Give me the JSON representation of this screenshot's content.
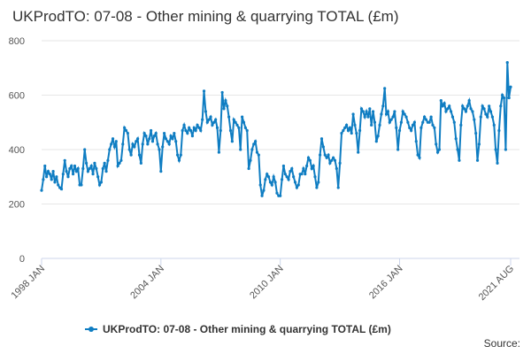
{
  "chart_data": {
    "type": "line",
    "title": "UKProdTO: 07-08 - Other mining & quarrying TOTAL (£m)",
    "source": "Source:",
    "categories": [
      "1998 JAN",
      null,
      null,
      null,
      null,
      null,
      null,
      null,
      null,
      null,
      null,
      null,
      null,
      null,
      null,
      null,
      null,
      null,
      null,
      null,
      null,
      null,
      null,
      null,
      null,
      null,
      null,
      null,
      null,
      null,
      null,
      null,
      null,
      null,
      null,
      null,
      null,
      null,
      null,
      null,
      null,
      null,
      null,
      null,
      null,
      null,
      null,
      null,
      null,
      null,
      null,
      null,
      null,
      null,
      null,
      null,
      null,
      null,
      null,
      null,
      null,
      null,
      null,
      null,
      null,
      null,
      null,
      null,
      null,
      null,
      null,
      null,
      "2004 JAN",
      null,
      null,
      null,
      null,
      null,
      null,
      null,
      null,
      null,
      null,
      null,
      null,
      null,
      null,
      null,
      null,
      null,
      null,
      null,
      null,
      null,
      null,
      null,
      null,
      null,
      null,
      null,
      null,
      null,
      null,
      null,
      null,
      null,
      null,
      null,
      null,
      null,
      null,
      null,
      null,
      null,
      null,
      null,
      null,
      null,
      null,
      null,
      null,
      null,
      null,
      null,
      null,
      null,
      null,
      null,
      null,
      null,
      null,
      null,
      null,
      null,
      null,
      null,
      null,
      null,
      null,
      null,
      null,
      null,
      null,
      null,
      "2010 JAN",
      null,
      null,
      null,
      null,
      null,
      null,
      null,
      null,
      null,
      null,
      null,
      null,
      null,
      null,
      null,
      null,
      null,
      null,
      null,
      null,
      null,
      null,
      null,
      null,
      null,
      null,
      null,
      null,
      null,
      null,
      null,
      null,
      null,
      null,
      null,
      null,
      null,
      null,
      null,
      null,
      null,
      null,
      null,
      null,
      null,
      null,
      null,
      null,
      null,
      null,
      null,
      null,
      null,
      null,
      null,
      null,
      null,
      null,
      null,
      null,
      null,
      null,
      null,
      null,
      null,
      null,
      null,
      null,
      null,
      null,
      null,
      "2016 JAN",
      null,
      null,
      null,
      null,
      null,
      null,
      null,
      null,
      null,
      null,
      null,
      null,
      null,
      null,
      null,
      null,
      null,
      null,
      null,
      null,
      null,
      null,
      null,
      null,
      null,
      null,
      null,
      null,
      null,
      null,
      null,
      null,
      null,
      null,
      null,
      null,
      null,
      null,
      null,
      null,
      null,
      null,
      null,
      null,
      null,
      null,
      null,
      null,
      null,
      null,
      null,
      null,
      null,
      null,
      null,
      null,
      null,
      null,
      null,
      null,
      null,
      null,
      null,
      null,
      null,
      null,
      "2021 AUG"
    ],
    "series": [
      {
        "name": "UKProdTO: 07-08 - Other mining & quarrying TOTAL (£m)",
        "color": "#0f7dc2",
        "values": [
          250,
          290,
          340,
          300,
          320,
          310,
          290,
          320,
          280,
          300,
          270,
          260,
          255,
          310,
          360,
          320,
          300,
          330,
          340,
          310,
          340,
          320,
          330,
          270,
          270,
          330,
          400,
          350,
          320,
          330,
          340,
          310,
          350,
          330,
          300,
          270,
          280,
          330,
          350,
          320,
          360,
          400,
          420,
          440,
          410,
          430,
          340,
          350,
          360,
          420,
          480,
          470,
          460,
          400,
          380,
          420,
          410,
          430,
          440,
          380,
          350,
          420,
          460,
          450,
          420,
          440,
          470,
          430,
          450,
          460,
          420,
          400,
          320,
          410,
          460,
          440,
          430,
          420,
          450,
          440,
          460,
          430,
          380,
          360,
          380,
          470,
          490,
          470,
          460,
          480,
          470,
          450,
          480,
          470,
          490,
          480,
          470,
          510,
          615,
          540,
          500,
          510,
          520,
          490,
          500,
          510,
          480,
          390,
          470,
          610,
          550,
          580,
          560,
          520,
          470,
          430,
          510,
          500,
          490,
          480,
          400,
          520,
          500,
          480,
          470,
          330,
          360,
          400,
          420,
          430,
          390,
          380,
          270,
          230,
          250,
          290,
          310,
          300,
          280,
          270,
          300,
          280,
          240,
          230,
          230,
          290,
          340,
          310,
          300,
          290,
          320,
          330,
          300,
          280,
          260,
          270,
          310,
          310,
          330,
          310,
          340,
          370,
          360,
          330,
          340,
          300,
          260,
          280,
          380,
          440,
          410,
          380,
          370,
          380,
          350,
          360,
          370,
          360,
          330,
          260,
          350,
          460,
          470,
          480,
          490,
          470,
          480,
          460,
          530,
          490,
          460,
          390,
          470,
          550,
          540,
          520,
          540,
          520,
          550,
          490,
          540,
          500,
          430,
          450,
          490,
          530,
          560,
          625,
          530,
          540,
          500,
          510,
          520,
          540,
          480,
          400,
          470,
          500,
          540,
          530,
          520,
          500,
          480,
          470,
          490,
          500,
          430,
          380,
          370,
          480,
          500,
          520,
          510,
          500,
          500,
          520,
          490,
          480,
          420,
          390,
          400,
          580,
          560,
          570,
          540,
          550,
          560,
          540,
          520,
          500,
          440,
          400,
          360,
          490,
          560,
          550,
          540,
          560,
          580,
          550,
          540,
          510,
          460,
          360,
          420,
          520,
          560,
          550,
          530,
          520,
          560,
          540,
          520,
          490,
          400,
          350,
          470,
          560,
          600,
          590,
          400,
          720,
          590,
          630
        ]
      }
    ],
    "ylim": [
      0,
      800
    ],
    "yticks": [
      0,
      200,
      400,
      600,
      800
    ],
    "grid": true,
    "legend": "bottom"
  }
}
